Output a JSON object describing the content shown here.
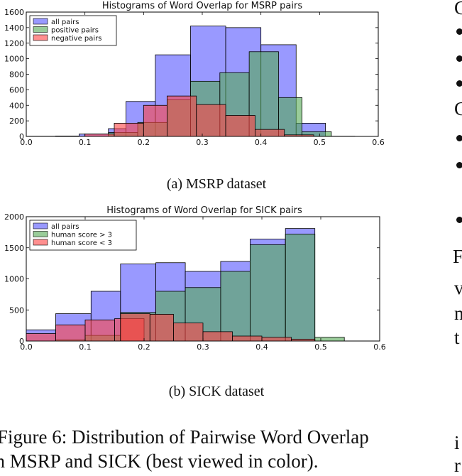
{
  "chart_data": [
    {
      "type": "bar",
      "title": "Histograms of Word Overlap for MSRP pairs",
      "xlim": [
        0.0,
        0.6
      ],
      "ylim": [
        0,
        1600
      ],
      "x_ticks": [
        "0.0",
        "0.1",
        "0.2",
        "0.3",
        "0.4",
        "0.5",
        "0.6"
      ],
      "y_ticks": [
        "0",
        "200",
        "400",
        "600",
        "800",
        "1000",
        "1200",
        "1400",
        "1600"
      ],
      "legend": "top-left",
      "colors": {
        "all": "#5555ff",
        "pos": "#55aa55",
        "neg": "#ff4444"
      },
      "series": [
        {
          "name": "all pairs",
          "color_key": "all",
          "bins": [
            [
              0.0,
              0.05,
              2
            ],
            [
              0.05,
              0.09,
              5
            ],
            [
              0.09,
              0.14,
              30
            ],
            [
              0.14,
              0.17,
              100
            ],
            [
              0.17,
              0.22,
              450
            ],
            [
              0.22,
              0.28,
              1050
            ],
            [
              0.28,
              0.34,
              1420
            ],
            [
              0.34,
              0.4,
              1400
            ],
            [
              0.4,
              0.46,
              1180
            ],
            [
              0.46,
              0.51,
              170
            ],
            [
              0.51,
              0.56,
              2
            ]
          ]
        },
        {
          "name": "positive pairs",
          "color_key": "pos",
          "bins": [
            [
              0.14,
              0.19,
              50
            ],
            [
              0.19,
              0.24,
              180
            ],
            [
              0.24,
              0.28,
              470
            ],
            [
              0.28,
              0.33,
              710
            ],
            [
              0.33,
              0.38,
              820
            ],
            [
              0.38,
              0.43,
              1090
            ],
            [
              0.43,
              0.47,
              500
            ],
            [
              0.47,
              0.52,
              60
            ]
          ]
        },
        {
          "name": "negative pairs",
          "color_key": "neg",
          "bins": [
            [
              0.1,
              0.15,
              30
            ],
            [
              0.15,
              0.2,
              170
            ],
            [
              0.2,
              0.24,
              400
            ],
            [
              0.24,
              0.29,
              520
            ],
            [
              0.29,
              0.34,
              410
            ],
            [
              0.34,
              0.39,
              270
            ],
            [
              0.39,
              0.44,
              90
            ],
            [
              0.44,
              0.49,
              20
            ]
          ]
        }
      ]
    },
    {
      "type": "bar",
      "title": "Histograms of Word Overlap for SICK pairs",
      "xlim": [
        0.0,
        0.6
      ],
      "ylim": [
        0,
        2000
      ],
      "x_ticks": [
        "0.0",
        "0.1",
        "0.2",
        "0.3",
        "0.4",
        "0.5",
        "0.6"
      ],
      "y_ticks": [
        "0",
        "500",
        "1000",
        "1500",
        "2000"
      ],
      "legend": "top-left",
      "colors": {
        "all": "#5555ff",
        "pos": "#55aa55",
        "neg": "#ff4444"
      },
      "series": [
        {
          "name": "all pairs",
          "color_key": "all",
          "bins": [
            [
              0.0,
              0.05,
              180
            ],
            [
              0.05,
              0.11,
              440
            ],
            [
              0.11,
              0.16,
              800
            ],
            [
              0.16,
              0.22,
              1240
            ],
            [
              0.22,
              0.27,
              1260
            ],
            [
              0.27,
              0.33,
              1120
            ],
            [
              0.33,
              0.38,
              1280
            ],
            [
              0.38,
              0.44,
              1640
            ],
            [
              0.44,
              0.49,
              1810
            ]
          ]
        },
        {
          "name": "human score > 3",
          "color_key": "pos",
          "bins": [
            [
              0.05,
              0.1,
              20
            ],
            [
              0.1,
              0.16,
              90
            ],
            [
              0.16,
              0.22,
              460
            ],
            [
              0.22,
              0.27,
              800
            ],
            [
              0.27,
              0.33,
              860
            ],
            [
              0.33,
              0.38,
              1120
            ],
            [
              0.38,
              0.44,
              1550
            ],
            [
              0.44,
              0.49,
              1720
            ],
            [
              0.49,
              0.54,
              60
            ]
          ]
        },
        {
          "name": "human score < 3",
          "color_key": "neg",
          "bins": [
            [
              0.0,
              0.05,
              120
            ],
            [
              0.05,
              0.1,
              260
            ],
            [
              0.1,
              0.15,
              340
            ],
            [
              0.15,
              0.2,
              360
            ],
            [
              0.16,
              0.21,
              440
            ],
            [
              0.21,
              0.25,
              430
            ],
            [
              0.25,
              0.3,
              290
            ],
            [
              0.3,
              0.35,
              150
            ],
            [
              0.35,
              0.4,
              80
            ],
            [
              0.4,
              0.45,
              60
            ],
            [
              0.45,
              0.49,
              30
            ]
          ]
        }
      ]
    }
  ],
  "captions": {
    "a": "(a) MSRP dataset",
    "b": "(b) SICK dataset"
  },
  "figure_caption": {
    "line1": "Figure 6:  Distribution of Pairwise Word Overlap",
    "line2": "in MSRP and SICK (best viewed in color)."
  },
  "right_column": {
    "l1": "F",
    "l2": "v",
    "l3": "n",
    "l4": "t",
    "l5": "i",
    "l6": "r",
    "c1": "C",
    "c2": "C"
  }
}
